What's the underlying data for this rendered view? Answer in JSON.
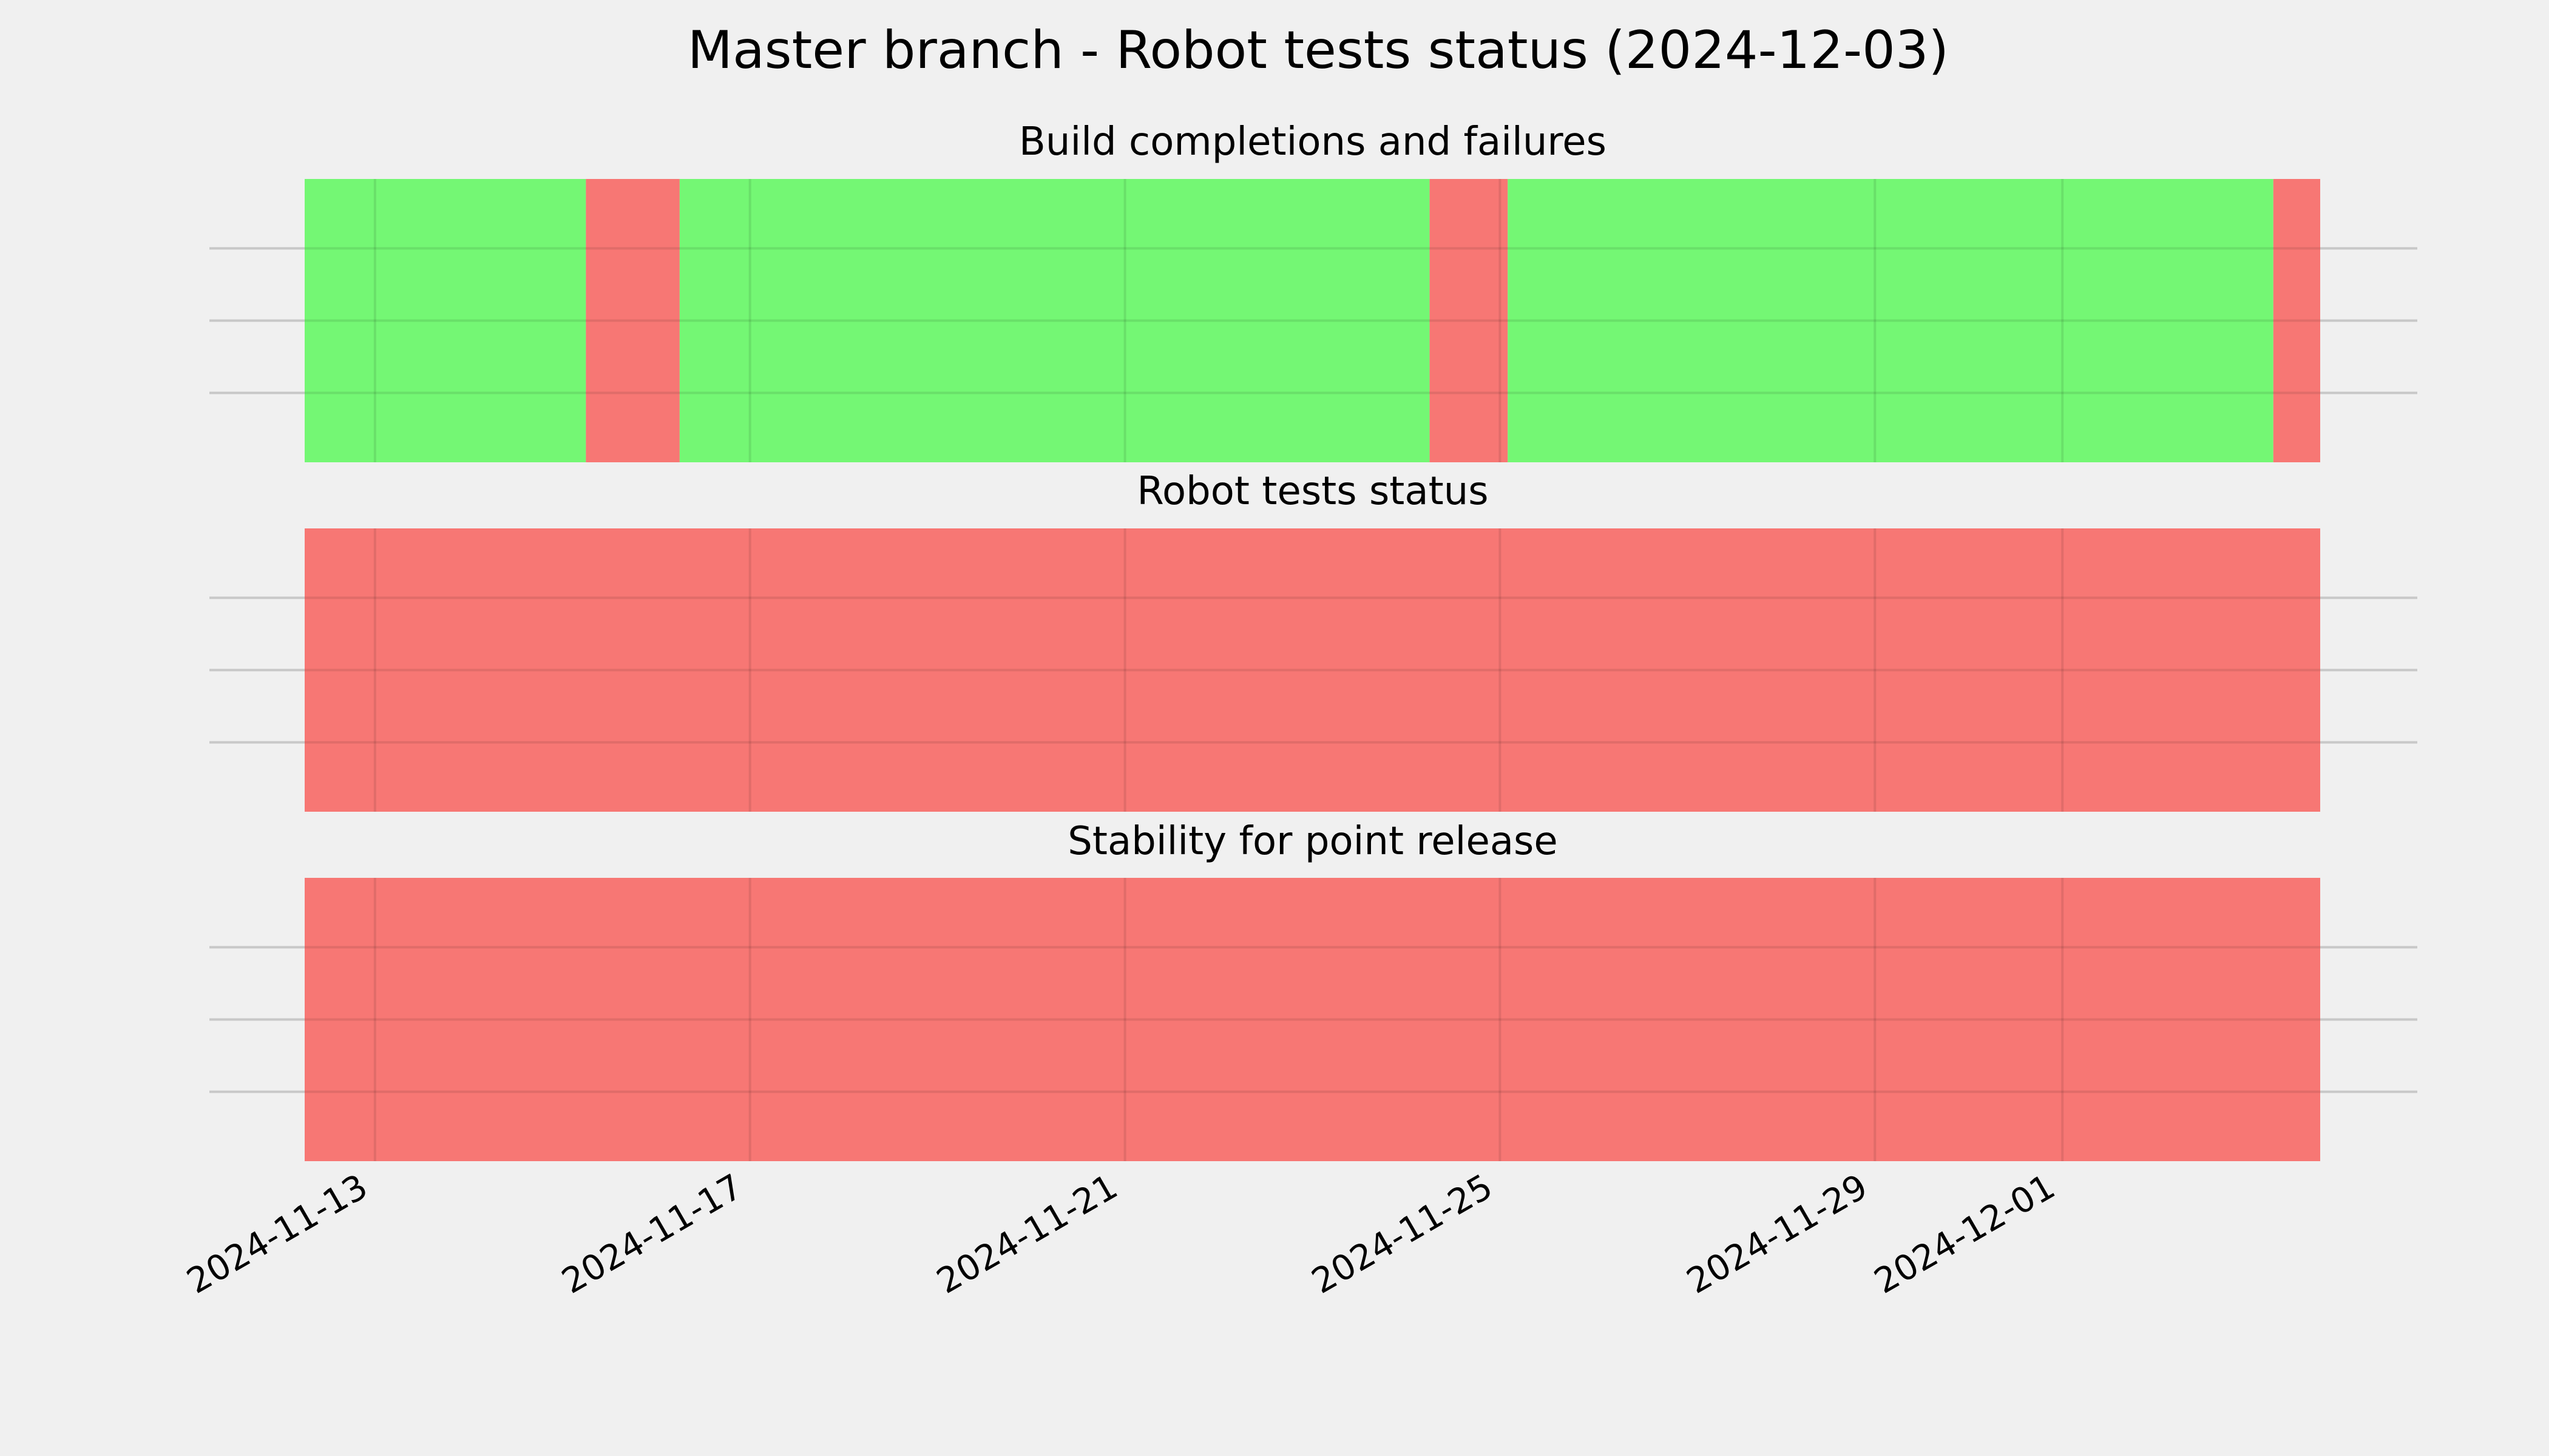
{
  "figure": {
    "title": "Master branch - Robot tests status (2024-12-03)",
    "background": "#f0f0f0"
  },
  "chart_data": {
    "type": "timeline",
    "x_axis": {
      "range": [
        "2024-11-12T06:00",
        "2024-12-03T18:00"
      ],
      "ticks": [
        "2024-11-13",
        "2024-11-17",
        "2024-11-21",
        "2024-11-25",
        "2024-11-29",
        "2024-12-01"
      ],
      "tick_rotation": "30°",
      "grid": true
    },
    "colors": {
      "success": "#74f774",
      "failure": "#f77774"
    },
    "panels": [
      {
        "title": "Build completions and failures",
        "segments": [
          {
            "start": "2024-11-12T06:00",
            "end": "2024-11-15T06:00",
            "status": "success"
          },
          {
            "start": "2024-11-15T06:00",
            "end": "2024-11-16T06:00",
            "status": "failure"
          },
          {
            "start": "2024-11-16T06:00",
            "end": "2024-11-24T06:00",
            "status": "success"
          },
          {
            "start": "2024-11-24T06:00",
            "end": "2024-11-25T02:00",
            "status": "failure"
          },
          {
            "start": "2024-11-25T02:00",
            "end": "2024-12-03T06:00",
            "status": "success"
          },
          {
            "start": "2024-12-03T06:00",
            "end": "2024-12-03T18:00",
            "status": "failure"
          }
        ]
      },
      {
        "title": "Robot tests status",
        "segments": [
          {
            "start": "2024-11-12T06:00",
            "end": "2024-12-03T18:00",
            "status": "failure"
          }
        ]
      },
      {
        "title": "Stability for point release",
        "segments": [
          {
            "start": "2024-11-12T06:00",
            "end": "2024-12-03T18:00",
            "status": "failure"
          }
        ]
      }
    ]
  }
}
